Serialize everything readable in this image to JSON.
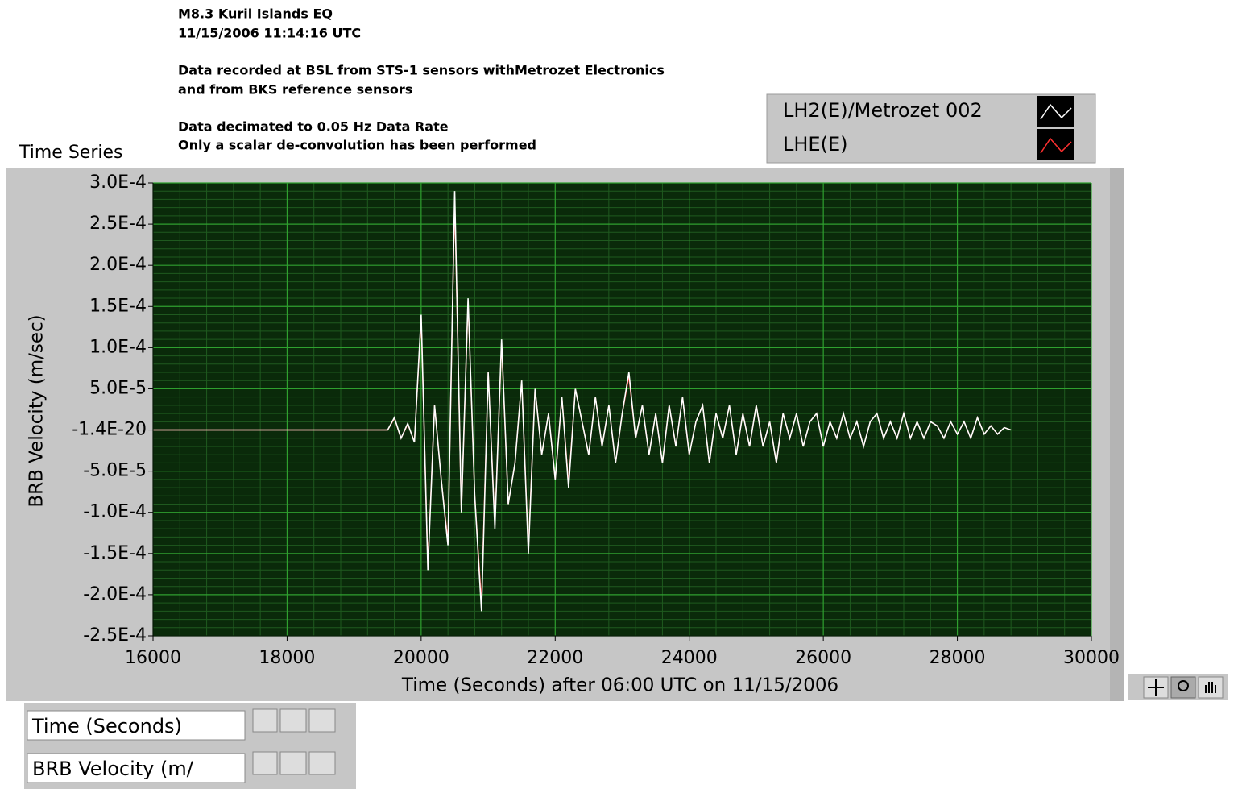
{
  "chart_data": {
    "type": "line",
    "annotations": [
      "M8.3 Kuril Islands EQ",
      "11/15/2006 11:14:16 UTC",
      "Data recorded at BSL from STS-1 sensors withMetrozet Electronics",
      "and from BKS reference sensors",
      "Data decimated to 0.05 Hz Data Rate",
      "Only a scalar de-convolution has been performed"
    ],
    "plot_label": "Time Series",
    "x_label": "Time (Seconds) after 06:00 UTC on 11/15/2006",
    "y_label": "BRB Velocity (m/sec)",
    "scale_panel": [
      "Time (Seconds)",
      "BRB Velocity (m/"
    ],
    "xlim": [
      16000,
      30000
    ],
    "xticks": [
      16000,
      18000,
      20000,
      22000,
      24000,
      26000,
      28000,
      30000
    ],
    "ylim": [
      -0.00025,
      0.0003
    ],
    "yticks": [
      {
        "value": 0.0003,
        "label": "3.0E-4"
      },
      {
        "value": 0.00025,
        "label": "2.5E-4"
      },
      {
        "value": 0.0002,
        "label": "2.0E-4"
      },
      {
        "value": 0.00015,
        "label": "1.5E-4"
      },
      {
        "value": 0.0001,
        "label": "1.0E-4"
      },
      {
        "value": 5e-05,
        "label": "5.0E-5"
      },
      {
        "value": -1.4e-20,
        "label": "-1.4E-20"
      },
      {
        "value": -5e-05,
        "label": "-5.0E-5"
      },
      {
        "value": -0.0001,
        "label": "-1.0E-4"
      },
      {
        "value": -0.00015,
        "label": "-1.5E-4"
      },
      {
        "value": -0.0002,
        "label": "-2.0E-4"
      },
      {
        "value": -0.00025,
        "label": "-2.5E-4"
      }
    ],
    "grid": true,
    "minor_grid": true,
    "legend": "top-right",
    "x": [
      16000,
      17000,
      18000,
      19000,
      19500,
      19600,
      19700,
      19800,
      19900,
      20000,
      20100,
      20200,
      20300,
      20400,
      20500,
      20600,
      20700,
      20800,
      20900,
      21000,
      21100,
      21200,
      21300,
      21400,
      21500,
      21600,
      21700,
      21800,
      21900,
      22000,
      22100,
      22200,
      22300,
      22400,
      22500,
      22600,
      22700,
      22800,
      22900,
      23000,
      23100,
      23200,
      23300,
      23400,
      23500,
      23600,
      23700,
      23800,
      23900,
      24000,
      24100,
      24200,
      24300,
      24400,
      24500,
      24600,
      24700,
      24800,
      24900,
      25000,
      25100,
      25200,
      25300,
      25400,
      25500,
      25600,
      25700,
      25800,
      25900,
      26000,
      26100,
      26200,
      26300,
      26400,
      26500,
      26600,
      26700,
      26800,
      26900,
      27000,
      27100,
      27200,
      27300,
      27400,
      27500,
      27600,
      27700,
      27800,
      27900,
      28000,
      28100,
      28200,
      28300,
      28400,
      28500,
      28600,
      28700,
      28800
    ],
    "series": [
      {
        "name": "LH2(E)/Metrozet 002",
        "color": "#ffffff",
        "values": [
          0,
          0,
          0,
          0,
          0,
          1.5e-05,
          -1e-05,
          8e-06,
          -1.5e-05,
          0.00014,
          -0.00017,
          3e-05,
          -6e-05,
          -0.00014,
          0.00029,
          -0.0001,
          0.00016,
          -8e-05,
          -0.00022,
          7e-05,
          -0.00012,
          0.00011,
          -9e-05,
          -4e-05,
          6e-05,
          -0.00015,
          5e-05,
          -3e-05,
          2e-05,
          -6e-05,
          4e-05,
          -7e-05,
          5e-05,
          1e-05,
          -3e-05,
          4e-05,
          -2e-05,
          3e-05,
          -4e-05,
          2e-05,
          7e-05,
          -1e-05,
          3e-05,
          -3e-05,
          2e-05,
          -4e-05,
          3e-05,
          -2e-05,
          4e-05,
          -3e-05,
          1e-05,
          3e-05,
          -4e-05,
          2e-05,
          -1e-05,
          3e-05,
          -3e-05,
          2e-05,
          -2e-05,
          3e-05,
          -2e-05,
          1e-05,
          -4e-05,
          2e-05,
          -1e-05,
          2e-05,
          -2e-05,
          1e-05,
          2e-05,
          -2e-05,
          1e-05,
          -1e-05,
          2e-05,
          -1e-05,
          1e-05,
          -2e-05,
          1e-05,
          2e-05,
          -1e-05,
          1e-05,
          -1e-05,
          2e-05,
          -1e-05,
          1e-05,
          -1e-05,
          1e-05,
          5e-06,
          -1e-05,
          1e-05,
          -5e-06,
          1e-05,
          -1e-05,
          1.5e-05,
          -5e-06,
          5e-06,
          -5e-06,
          3e-06,
          0
        ]
      },
      {
        "name": "LHE(E)",
        "color": "#ff3030",
        "values": [
          0,
          0,
          0,
          0,
          0,
          1.4e-05,
          -1e-05,
          7e-06,
          -1.4e-05,
          0.000135,
          -0.000165,
          3e-05,
          -6e-05,
          -0.000135,
          0.00028,
          -0.0001,
          0.000155,
          -8e-05,
          -0.00021,
          7e-05,
          -0.000115,
          0.000105,
          -9e-05,
          -4e-05,
          6e-05,
          -0.000145,
          5e-05,
          -3e-05,
          2e-05,
          -6e-05,
          4e-05,
          -6.5e-05,
          5e-05,
          1e-05,
          -3e-05,
          4e-05,
          -2e-05,
          3e-05,
          -4e-05,
          2e-05,
          6.5e-05,
          -1e-05,
          3e-05,
          -3e-05,
          2e-05,
          -4e-05,
          3e-05,
          -2e-05,
          4e-05,
          -3e-05,
          1e-05,
          3e-05,
          -4e-05,
          2e-05,
          -1e-05,
          3e-05,
          -3e-05,
          2e-05,
          -2e-05,
          3e-05,
          -2e-05,
          1e-05,
          -4e-05,
          2e-05,
          -1e-05,
          2e-05,
          -2e-05,
          1e-05,
          2e-05,
          -2e-05,
          1e-05,
          -1e-05,
          2e-05,
          -1e-05,
          1e-05,
          -2e-05,
          1e-05,
          2e-05,
          -1e-05,
          1e-05,
          -1e-05,
          2e-05,
          -1e-05,
          1e-05,
          -1e-05,
          1e-05,
          5e-06,
          -1e-05,
          1e-05,
          -5e-06,
          1e-05,
          -1e-05,
          1.5e-05,
          -5e-06,
          5e-06,
          -5e-06,
          3e-06,
          0
        ]
      }
    ]
  }
}
